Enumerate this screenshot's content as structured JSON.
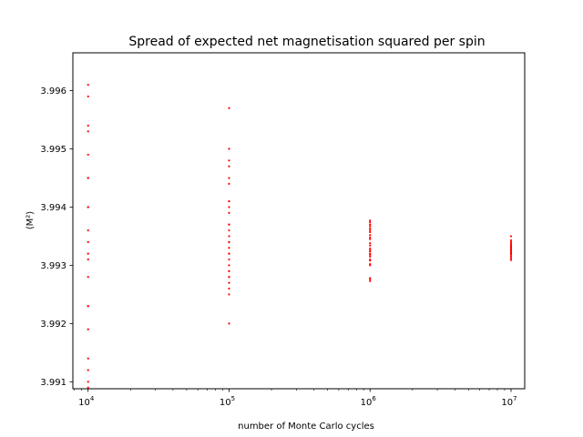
{
  "chart_data": {
    "type": "scatter",
    "title": "Spread of expected net magnetisation squared per spin",
    "xlabel": "number of Monte Carlo cycles",
    "ylabel": "⟨M²⟩",
    "x_scale": "log",
    "xlim": [
      7800,
      12500000
    ],
    "ylim": [
      3.99088,
      3.99665
    ],
    "x_ticks": [
      {
        "value": 10000,
        "base": "10",
        "exp": "4"
      },
      {
        "value": 100000,
        "base": "10",
        "exp": "5"
      },
      {
        "value": 1000000,
        "base": "10",
        "exp": "6"
      },
      {
        "value": 10000000,
        "base": "10",
        "exp": "7"
      }
    ],
    "y_ticks": [
      {
        "value": 3.991,
        "label": "3.991"
      },
      {
        "value": 3.992,
        "label": "3.992"
      },
      {
        "value": 3.993,
        "label": "3.993"
      },
      {
        "value": 3.994,
        "label": "3.994"
      },
      {
        "value": 3.995,
        "label": "3.995"
      },
      {
        "value": 3.996,
        "label": "3.996"
      }
    ],
    "grid": false,
    "marker_color": "#ff0000",
    "series": [
      {
        "x": 10000,
        "values": [
          3.9961,
          3.9959,
          3.9954,
          3.9953,
          3.9949,
          3.9945,
          3.9945,
          3.994,
          3.994,
          3.9936,
          3.9934,
          3.9932,
          3.9931,
          3.9928,
          3.9923,
          3.9923,
          3.9919,
          3.9914,
          3.9912,
          3.991,
          3.9909
        ]
      },
      {
        "x": 100000,
        "values": [
          3.9957,
          3.995,
          3.9948,
          3.9947,
          3.9945,
          3.9944,
          3.9941,
          3.9941,
          3.994,
          3.9939,
          3.9937,
          3.9937,
          3.9936,
          3.9935,
          3.9934,
          3.9934,
          3.9933,
          3.9932,
          3.9932,
          3.9931,
          3.993,
          3.9929,
          3.9929,
          3.9928,
          3.9928,
          3.9927,
          3.9926,
          3.9925,
          3.992
        ]
      },
      {
        "x": 1000000,
        "values": [
          3.99377,
          3.99374,
          3.9937,
          3.99367,
          3.99363,
          3.9936,
          3.99357,
          3.99352,
          3.99348,
          3.99345,
          3.99338,
          3.99334,
          3.99329,
          3.99326,
          3.99324,
          3.9932,
          3.99318,
          3.99315,
          3.9931,
          3.99308,
          3.99302,
          3.993,
          3.99278,
          3.99276,
          3.99273
        ]
      },
      {
        "x": 10000000,
        "values": [
          3.9935,
          3.99343,
          3.9934,
          3.99337,
          3.99335,
          3.99333,
          3.99331,
          3.9933,
          3.99328,
          3.99326,
          3.99324,
          3.99322,
          3.9932,
          3.99318,
          3.99315,
          3.99312,
          3.99309
        ]
      }
    ]
  }
}
